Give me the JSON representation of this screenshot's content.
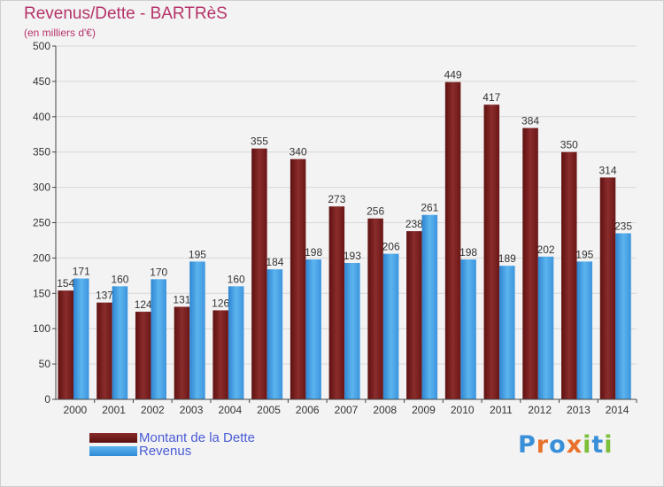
{
  "title": "Revenus/Dette - BARTRèS",
  "subtitle": "(en milliers d'€)",
  "logo": {
    "text": "Proxiti",
    "letters": [
      "P",
      "r",
      "o",
      "x",
      "i",
      "t",
      "i"
    ],
    "colors": [
      "#3a8fd9",
      "#e8702a",
      "#3a8fd9",
      "#e8702a",
      "#7cbf3a",
      "#3a8fd9",
      "#7cbf3a"
    ]
  },
  "chart_data": {
    "type": "bar",
    "categories": [
      "2000",
      "2001",
      "2002",
      "2003",
      "2004",
      "2005",
      "2006",
      "2007",
      "2008",
      "2009",
      "2010",
      "2011",
      "2012",
      "2013",
      "2014"
    ],
    "series": [
      {
        "name": "Montant de la Dette",
        "color": "#7a1f1f",
        "values": [
          154,
          137,
          124,
          131,
          126,
          355,
          340,
          273,
          256,
          238,
          449,
          417,
          384,
          350,
          314
        ]
      },
      {
        "name": "Revenus",
        "color": "#4aa3e6",
        "values": [
          171,
          160,
          170,
          195,
          160,
          184,
          198,
          193,
          206,
          261,
          198,
          189,
          202,
          195,
          235
        ]
      }
    ],
    "ylim": [
      0,
      500
    ],
    "yticks": [
      0,
      50,
      100,
      150,
      200,
      250,
      300,
      350,
      400,
      450,
      500
    ],
    "grid": true,
    "legend_position": "bottom-left"
  }
}
